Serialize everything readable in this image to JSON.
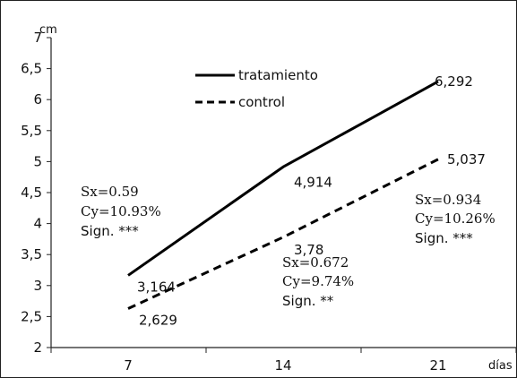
{
  "chart_data": {
    "type": "line",
    "x": [
      7,
      14,
      21
    ],
    "x_tick_labels": [
      "7",
      "14",
      "21"
    ],
    "y_tick_labels": [
      "2",
      "2,5",
      "3",
      "3,5",
      "4",
      "4,5",
      "5",
      "5,5",
      "6",
      "6,5",
      "7"
    ],
    "ylim": [
      2,
      7
    ],
    "xlabel": "días",
    "ylabel": "cm",
    "grid": false,
    "legend_placement": "top-center",
    "series": [
      {
        "name": "tratamiento",
        "style": "solid",
        "color": "#000000",
        "values": [
          3.164,
          4.914,
          6.292
        ],
        "labels": [
          "3,164",
          "4,914",
          "6,292"
        ]
      },
      {
        "name": "control",
        "style": "dashed",
        "color": "#000000",
        "values": [
          2.629,
          3.78,
          5.037
        ],
        "labels": [
          "2,629",
          "3,78",
          "5,037"
        ]
      }
    ],
    "annotations": [
      {
        "sx": "Sx=0.59",
        "cy": "Cy=10.93%",
        "sign": "Sign. ***"
      },
      {
        "sx": "Sx=0.672",
        "cy": "Cy=9.74%",
        "sign": "Sign. **"
      },
      {
        "sx": "Sx=0.934",
        "cy": "Cy=10.26%",
        "sign": "Sign. ***"
      }
    ]
  }
}
